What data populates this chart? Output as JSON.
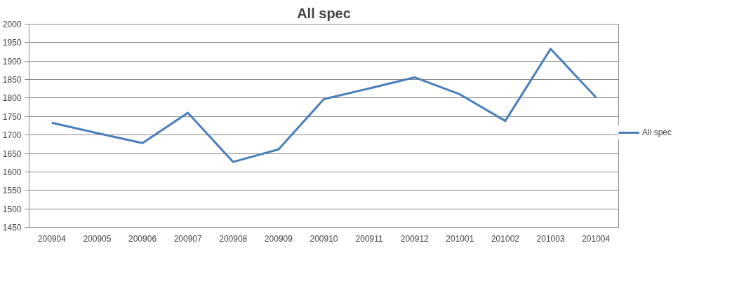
{
  "chart_data": {
    "type": "line",
    "title": "All spec",
    "categories": [
      "200904",
      "200905",
      "200906",
      "200907",
      "200908",
      "200909",
      "200910",
      "200911",
      "200912",
      "201001",
      "201002",
      "201003",
      "201004"
    ],
    "series": [
      {
        "name": "All spec",
        "color": "#4a7ebb",
        "values": [
          1733,
          1705,
          1678,
          1760,
          1627,
          1661,
          1797,
          1826,
          1856,
          1810,
          1738,
          1933,
          1802
        ]
      }
    ],
    "ylim": [
      1450,
      2000
    ],
    "yticks": [
      1450,
      1500,
      1550,
      1600,
      1650,
      1700,
      1750,
      1800,
      1850,
      1900,
      1950,
      2000
    ],
    "grid": "y",
    "legend": "right",
    "marker": "none",
    "line_style": "solid"
  }
}
